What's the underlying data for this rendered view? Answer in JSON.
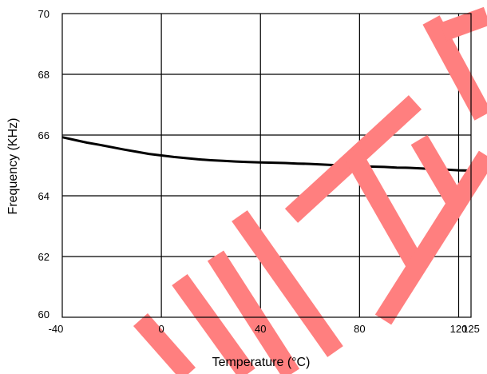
{
  "chart_data": {
    "type": "line",
    "title": "",
    "xlabel": "Temperature (°C)",
    "ylabel": "Frequency (KHz)",
    "xlim": [
      -40,
      125
    ],
    "ylim": [
      60,
      70
    ],
    "x_ticks": [
      -40,
      0,
      40,
      80,
      120,
      125
    ],
    "y_ticks": [
      60,
      62,
      64,
      66,
      68,
      70
    ],
    "x_tick_labels": [
      "-40",
      "0",
      "40",
      "80",
      "120",
      "125"
    ],
    "y_tick_labels": [
      "60",
      "62",
      "64",
      "66",
      "68",
      "70"
    ],
    "grid": true,
    "series": [
      {
        "x": [
          -40,
          -35,
          -30,
          -25,
          -20,
          -15,
          -10,
          -5,
          0,
          5,
          10,
          15,
          20,
          25,
          30,
          35,
          40,
          45,
          50,
          55,
          60,
          65,
          70,
          75,
          80,
          85,
          90,
          95,
          100,
          105,
          110,
          115,
          120,
          125
        ],
        "values": [
          65.93,
          65.84,
          65.75,
          65.68,
          65.6,
          65.52,
          65.45,
          65.38,
          65.33,
          65.28,
          65.24,
          65.2,
          65.17,
          65.15,
          65.13,
          65.11,
          65.1,
          65.09,
          65.08,
          65.06,
          65.05,
          65.03,
          65.01,
          64.99,
          64.98,
          64.96,
          64.95,
          64.93,
          64.92,
          64.9,
          64.88,
          64.86,
          64.84,
          64.83
        ],
        "color": "#000000"
      }
    ]
  },
  "watermark": {
    "color": "#ff7f7f"
  }
}
